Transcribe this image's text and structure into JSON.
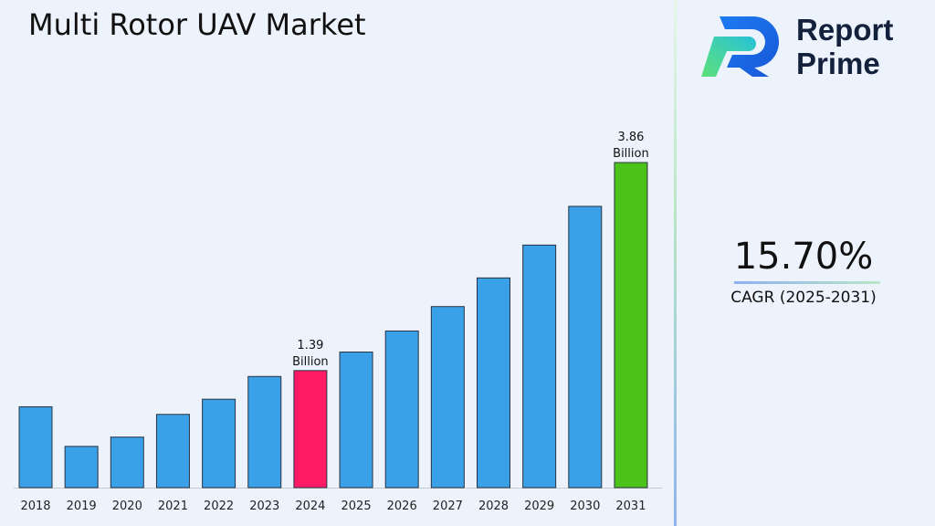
{
  "chart_data": {
    "type": "bar",
    "title": "Multi Rotor UAV Market",
    "categories": [
      "2018",
      "2019",
      "2020",
      "2021",
      "2022",
      "2023",
      "2024",
      "2025",
      "2026",
      "2027",
      "2028",
      "2029",
      "2030",
      "2031"
    ],
    "values": [
      0.96,
      0.49,
      0.6,
      0.87,
      1.05,
      1.32,
      1.39,
      1.61,
      1.86,
      2.15,
      2.49,
      2.88,
      3.34,
      3.86
    ],
    "unit": "Billion",
    "data_labels": [
      {
        "category": "2024",
        "value": "1.39",
        "unit": "Billion"
      },
      {
        "category": "2031",
        "value": "3.86",
        "unit": "Billion"
      }
    ],
    "colors": {
      "default": "#3aa0e8",
      "highlight_2024": "#ff1a66",
      "highlight_2031": "#4cc21a",
      "outline": "#2a3440"
    },
    "xlabel": "",
    "ylabel": "",
    "y_axis_visible": false,
    "grid": false
  },
  "cagr": {
    "value": "15.70%",
    "label": "CAGR (2025-2031)"
  },
  "logo": {
    "line1": "Report",
    "line2": "Prime"
  }
}
